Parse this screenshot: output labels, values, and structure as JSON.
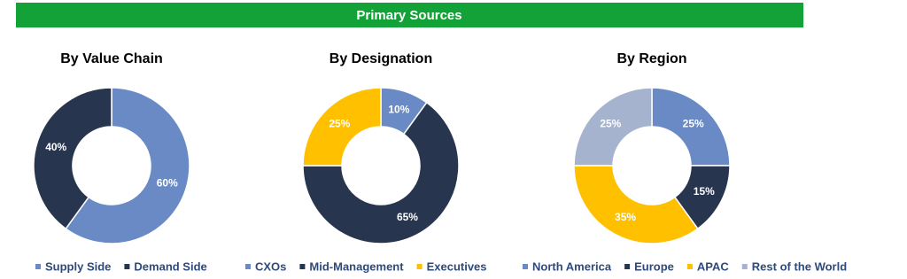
{
  "header": {
    "title": "Primary Sources"
  },
  "chart_data": [
    {
      "type": "donut",
      "title": "By Value Chain",
      "categories": [
        "Supply Side",
        "Demand Side"
      ],
      "values": [
        60,
        40
      ],
      "value_labels": [
        "60%",
        "40%"
      ],
      "colors": [
        "#6a8ac6",
        "#27354f"
      ]
    },
    {
      "type": "donut",
      "title": "By Designation",
      "categories": [
        "CXOs",
        "Mid-Management",
        "Executives"
      ],
      "values": [
        10,
        65,
        25
      ],
      "value_labels": [
        "10%",
        "65%",
        "25%"
      ],
      "colors": [
        "#6a8ac6",
        "#27354f",
        "#ffc000"
      ]
    },
    {
      "type": "donut",
      "title": "By Region",
      "categories": [
        "North America",
        "Europe",
        "APAC",
        "Rest of the World"
      ],
      "values": [
        25,
        15,
        35,
        25
      ],
      "value_labels": [
        "25%",
        "15%",
        "35%",
        "25%"
      ],
      "colors": [
        "#6a8ac6",
        "#27354f",
        "#ffc000",
        "#a5b3ce"
      ]
    }
  ]
}
